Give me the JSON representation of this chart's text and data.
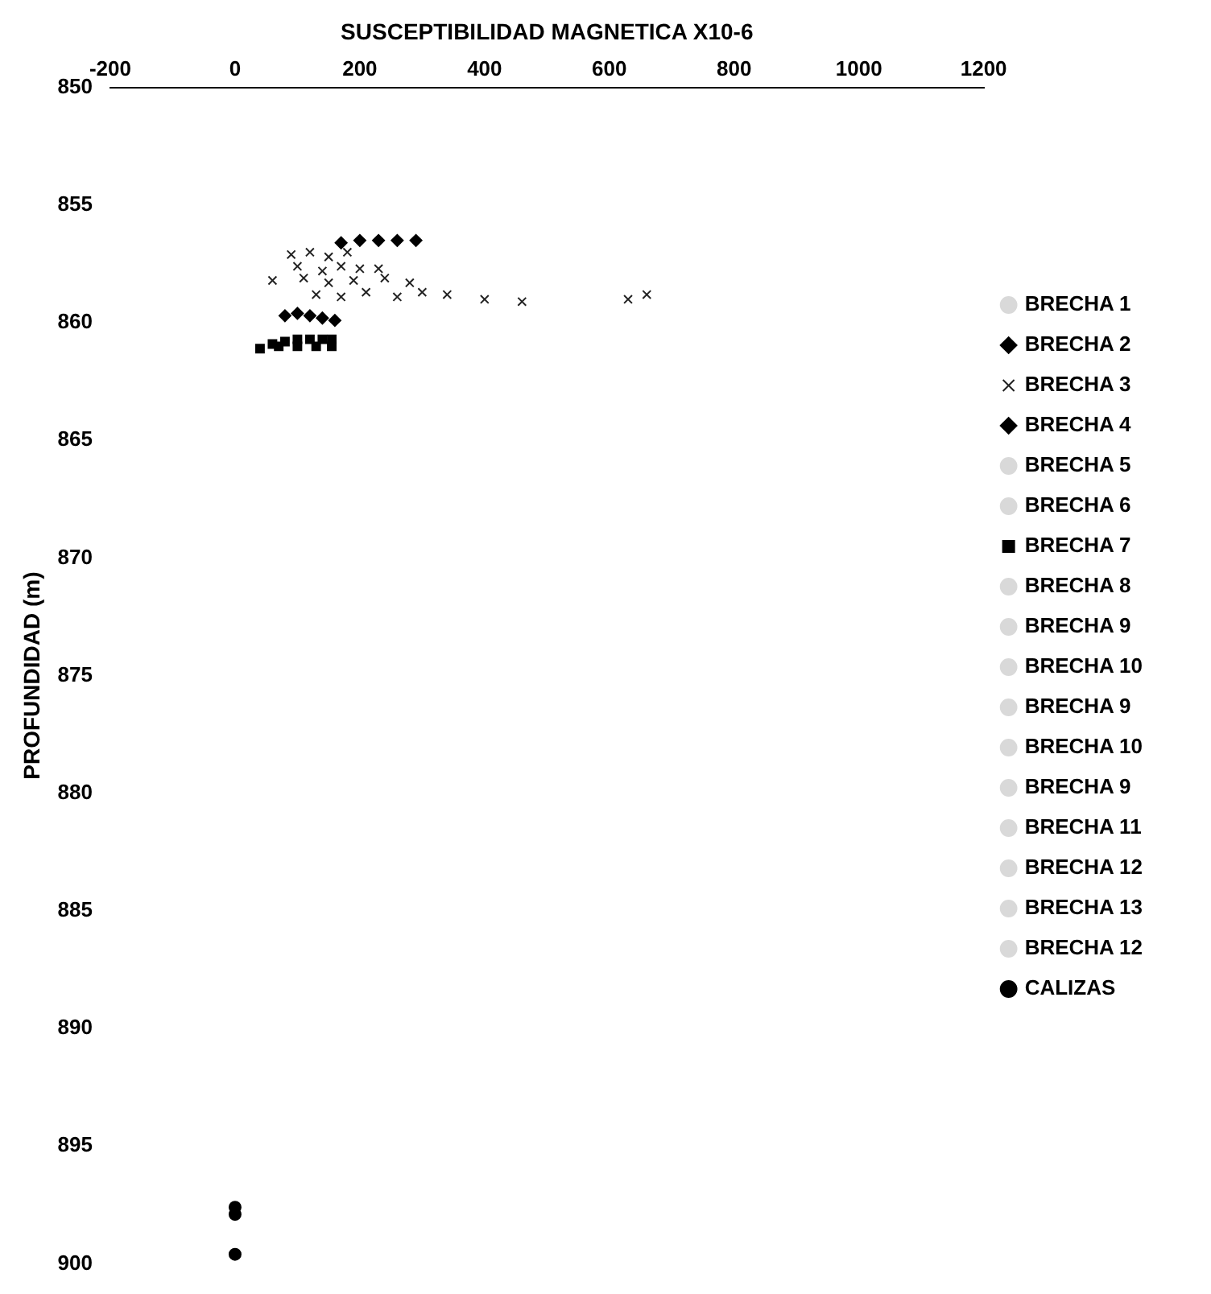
{
  "chart_data": {
    "type": "scatter",
    "xlabel": "SUSCEPTIBILIDAD MAGNETICA X10-6",
    "ylabel": "PROFUNDIDAD (m)",
    "xlim": [
      -200,
      1200
    ],
    "xticks": [
      -200,
      0,
      200,
      400,
      600,
      800,
      1000,
      1200
    ],
    "ylim": [
      900,
      850
    ],
    "yticks": [
      850,
      855,
      860,
      865,
      870,
      875,
      880,
      885,
      890,
      895,
      900
    ],
    "grid": false,
    "legend": "right",
    "series": [
      {
        "name": "BRECHA 1",
        "color": "#d9d9d9",
        "marker": "circle"
      },
      {
        "name": "BRECHA 2",
        "color": "#000000",
        "marker": "diamond",
        "x": [
          170,
          200,
          230,
          260,
          290
        ],
        "values": [
          856.6,
          856.5,
          856.5,
          856.5,
          856.5
        ]
      },
      {
        "name": "BRECHA 3",
        "color": "#222222",
        "marker": "cross",
        "x": [
          90,
          120,
          150,
          180,
          100,
          140,
          170,
          200,
          230,
          60,
          110,
          150,
          190,
          240,
          280,
          130,
          170,
          210,
          260,
          300,
          340,
          400,
          460,
          630,
          660
        ],
        "values": [
          857.1,
          857.0,
          857.2,
          857.0,
          857.6,
          857.8,
          857.6,
          857.7,
          857.7,
          858.2,
          858.1,
          858.3,
          858.2,
          858.1,
          858.3,
          858.8,
          858.9,
          858.7,
          858.9,
          858.7,
          858.8,
          859.0,
          859.1,
          859.0,
          858.8
        ]
      },
      {
        "name": "BRECHA 4",
        "color": "#000000",
        "marker": "diamond",
        "x": [
          80,
          100,
          120,
          140,
          160
        ],
        "values": [
          859.7,
          859.6,
          859.7,
          859.8,
          859.9
        ]
      },
      {
        "name": "BRECHA 5",
        "color": "#d9d9d9",
        "marker": "circle"
      },
      {
        "name": "BRECHA 6",
        "color": "#d9d9d9",
        "marker": "circle"
      },
      {
        "name": "BRECHA 7",
        "color": "#000000",
        "marker": "square",
        "x": [
          40,
          60,
          80,
          100,
          120,
          140,
          155,
          70,
          100,
          130,
          155
        ],
        "values": [
          861.1,
          860.9,
          860.8,
          860.7,
          860.7,
          860.7,
          860.7,
          861.0,
          861.0,
          861.0,
          861.0
        ]
      },
      {
        "name": "BRECHA 8",
        "color": "#d9d9d9",
        "marker": "circle"
      },
      {
        "name": "BRECHA 9",
        "color": "#d9d9d9",
        "marker": "circle"
      },
      {
        "name": "BRECHA 10",
        "color": "#d9d9d9",
        "marker": "circle"
      },
      {
        "name": "BRECHA 9",
        "color": "#d9d9d9",
        "marker": "circle"
      },
      {
        "name": "BRECHA 10",
        "color": "#d9d9d9",
        "marker": "circle"
      },
      {
        "name": "BRECHA 9",
        "color": "#d9d9d9",
        "marker": "circle"
      },
      {
        "name": "BRECHA 11",
        "color": "#d9d9d9",
        "marker": "circle"
      },
      {
        "name": "BRECHA 12",
        "color": "#d9d9d9",
        "marker": "circle"
      },
      {
        "name": "BRECHA 13",
        "color": "#d9d9d9",
        "marker": "circle"
      },
      {
        "name": "BRECHA 12",
        "color": "#d9d9d9",
        "marker": "circle"
      },
      {
        "name": "CALIZAS",
        "color": "#000000",
        "marker": "circle",
        "x": [
          0,
          0,
          0
        ],
        "values": [
          897.6,
          897.9,
          899.6
        ]
      }
    ]
  }
}
